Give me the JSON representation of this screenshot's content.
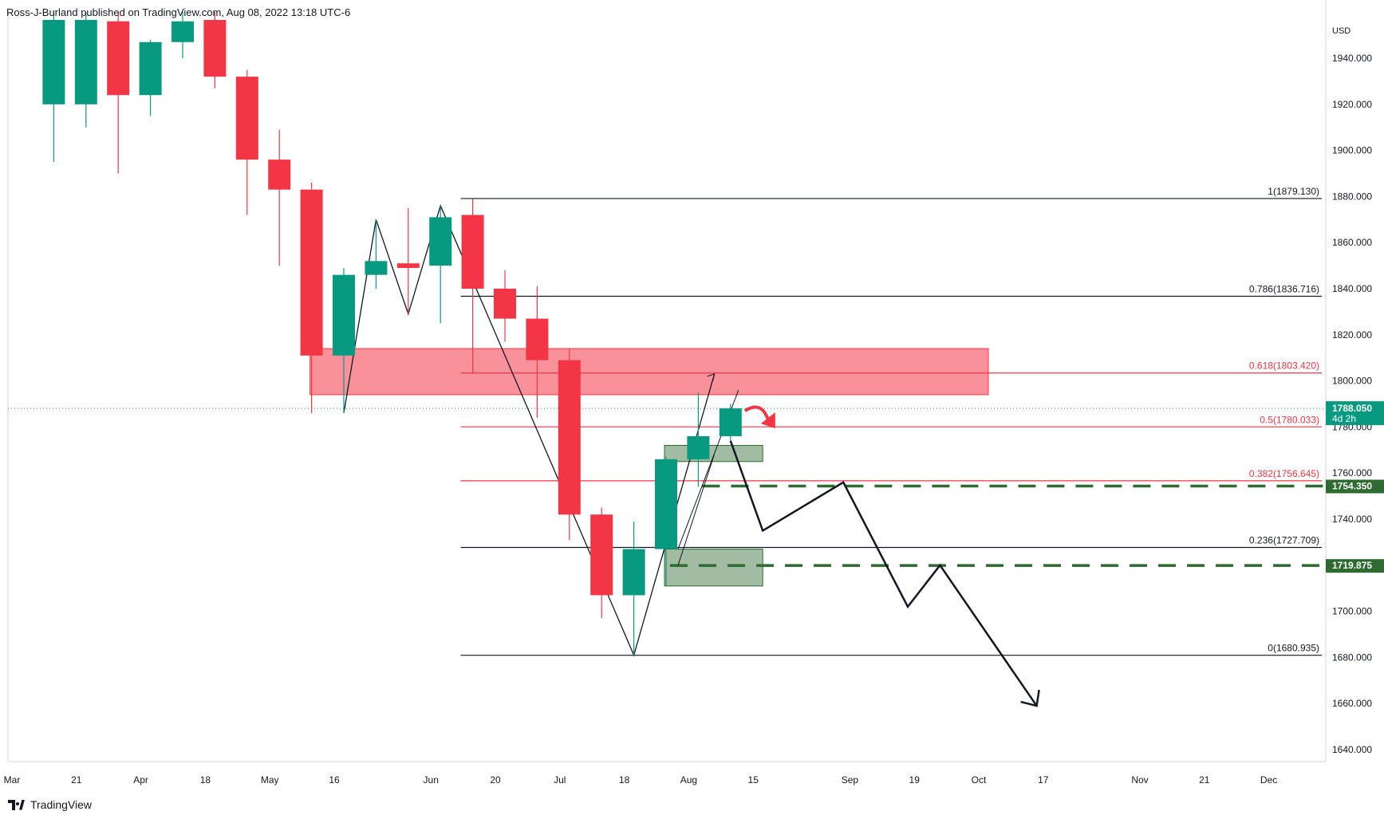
{
  "publisher_text": "Ross-J-Burland published on TradingView.com, Aug 08, 2022 13:18 UTC-6",
  "brand_name": "TradingView",
  "chart_data": {
    "type": "candlestick",
    "currency": "USD",
    "ylim": [
      1630,
      1950
    ],
    "y_ticks": [
      1640,
      1660,
      1680,
      1700,
      1720,
      1740,
      1760,
      1780,
      1800,
      1820,
      1840,
      1860,
      1880,
      1900,
      1920,
      1940
    ],
    "y_tick_labels": [
      "1640.000",
      "1660.000",
      "1680.000",
      "1700.000",
      "",
      "1740.000",
      "1760.000",
      "1780.000",
      "1800.000",
      "1820.000",
      "1840.000",
      "1860.000",
      "1880.000",
      "1900.000",
      "1920.000",
      "1940.000"
    ],
    "x_ticks": [
      {
        "label": "Mar",
        "week": 0
      },
      {
        "label": "21",
        "week": 2
      },
      {
        "label": "Apr",
        "week": 4
      },
      {
        "label": "18",
        "week": 6
      },
      {
        "label": "May",
        "week": 8
      },
      {
        "label": "16",
        "week": 10
      },
      {
        "label": "Jun",
        "week": 13
      },
      {
        "label": "20",
        "week": 15
      },
      {
        "label": "Jul",
        "week": 17
      },
      {
        "label": "18",
        "week": 19
      },
      {
        "label": "Aug",
        "week": 21
      },
      {
        "label": "15",
        "week": 23
      },
      {
        "label": "Sep",
        "week": 26
      },
      {
        "label": "19",
        "week": 28
      },
      {
        "label": "Oct",
        "week": 30
      },
      {
        "label": "17",
        "week": 32
      },
      {
        "label": "Nov",
        "week": 35
      },
      {
        "label": "21",
        "week": 37
      },
      {
        "label": "Dec",
        "week": 39
      }
    ],
    "candles": [
      {
        "week": 1,
        "open": 1920,
        "high": 1966,
        "low": 1895,
        "close": 1968
      },
      {
        "week": 2,
        "open": 1920,
        "high": 1966,
        "low": 1910,
        "close": 1966
      },
      {
        "week": 3,
        "open": 1956,
        "high": 1966,
        "low": 1890,
        "close": 1924
      },
      {
        "week": 4,
        "open": 1924,
        "high": 1948,
        "low": 1915,
        "close": 1947
      },
      {
        "week": 5,
        "open": 1947,
        "high": 1966,
        "low": 1940,
        "close": 1956
      },
      {
        "week": 6,
        "open": 1958,
        "high": 1966,
        "low": 1927,
        "close": 1932
      },
      {
        "week": 7,
        "open": 1932,
        "high": 1935,
        "low": 1872,
        "close": 1896
      },
      {
        "week": 8,
        "open": 1896,
        "high": 1909,
        "low": 1850,
        "close": 1883
      },
      {
        "week": 9,
        "open": 1883,
        "high": 1886,
        "low": 1786,
        "close": 1811
      },
      {
        "week": 10,
        "open": 1811,
        "high": 1849,
        "low": 1786,
        "close": 1846
      },
      {
        "week": 11,
        "open": 1846,
        "high": 1870,
        "low": 1840,
        "close": 1852
      },
      {
        "week": 12,
        "open": 1851,
        "high": 1875,
        "low": 1829,
        "close": 1849
      },
      {
        "week": 13,
        "open": 1850,
        "high": 1876,
        "low": 1825,
        "close": 1871
      },
      {
        "week": 14,
        "open": 1872,
        "high": 1879,
        "low": 1803,
        "close": 1840
      },
      {
        "week": 15,
        "open": 1840,
        "high": 1848,
        "low": 1817,
        "close": 1827
      },
      {
        "week": 16,
        "open": 1827,
        "high": 1841,
        "low": 1784,
        "close": 1809
      },
      {
        "week": 17,
        "open": 1809,
        "high": 1814,
        "low": 1731,
        "close": 1742
      },
      {
        "week": 18,
        "open": 1742,
        "high": 1745,
        "low": 1697,
        "close": 1707
      },
      {
        "week": 19,
        "open": 1707,
        "high": 1739,
        "low": 1681,
        "close": 1727
      },
      {
        "week": 20,
        "open": 1727,
        "high": 1767,
        "low": 1711,
        "close": 1766
      },
      {
        "week": 21,
        "open": 1766,
        "high": 1795,
        "low": 1754,
        "close": 1776
      },
      {
        "week": 22,
        "open": 1776,
        "high": 1790,
        "low": 1774,
        "close": 1788.05
      }
    ],
    "current_price": {
      "value": 1788.05,
      "label": "1788.050",
      "sublabel": "4d 2h"
    },
    "fibonacci": {
      "from_week": 14,
      "to_week": 40,
      "levels": [
        {
          "ratio": "1",
          "price": 1879.13,
          "label": "1(1879.130)",
          "color": "#131722"
        },
        {
          "ratio": "0.786",
          "price": 1836.716,
          "label": "0.786(1836.716)",
          "color": "#131722"
        },
        {
          "ratio": "0.618",
          "price": 1803.42,
          "label": "0.618(1803.420)",
          "color": "#f23645"
        },
        {
          "ratio": "0.5",
          "price": 1780.033,
          "label": "0.5(1780.033)",
          "color": "#f23645"
        },
        {
          "ratio": "0.382",
          "price": 1756.645,
          "label": "0.382(1756.645)",
          "color": "#f23645"
        },
        {
          "ratio": "0.236",
          "price": 1727.709,
          "label": "0.236(1727.709)",
          "color": "#131722"
        },
        {
          "ratio": "0",
          "price": 1680.935,
          "label": "0(1680.935)",
          "color": "#131722"
        }
      ]
    },
    "horizontal_levels": [
      {
        "price": 1754.35,
        "label": "1754.350",
        "from_week": 21,
        "color": "#2e6b30"
      },
      {
        "price": 1719.875,
        "label": "1719.875",
        "from_week": 20,
        "color": "#2e6b30"
      }
    ],
    "zones": [
      {
        "kind": "resistance",
        "from_week": 9,
        "to_week": 30,
        "top": 1814,
        "bottom": 1794,
        "color": "#f23645"
      },
      {
        "kind": "support",
        "from_week": 20,
        "to_week": 23,
        "top": 1772,
        "bottom": 1765,
        "color": "#2e6b30"
      },
      {
        "kind": "support",
        "from_week": 20,
        "to_week": 23,
        "top": 1727,
        "bottom": 1711,
        "color": "#2e6b30"
      }
    ],
    "price_path": [
      {
        "week": 10,
        "price": 1786
      },
      {
        "week": 11,
        "price": 1870
      },
      {
        "week": 12,
        "price": 1829
      },
      {
        "week": 13,
        "price": 1876
      },
      {
        "week": 19,
        "price": 1681
      },
      {
        "week": 21.5,
        "price": 1803
      }
    ],
    "projection_path": [
      {
        "week": 22,
        "price": 1774
      },
      {
        "week": 23,
        "price": 1735
      },
      {
        "week": 25.5,
        "price": 1756
      },
      {
        "week": 27.5,
        "price": 1702
      },
      {
        "week": 28.5,
        "price": 1720
      },
      {
        "week": 31.5,
        "price": 1659
      }
    ],
    "colors": {
      "up": "#089981",
      "down": "#f23645",
      "axis_text": "#131722",
      "grid": "#e0e3eb"
    }
  }
}
